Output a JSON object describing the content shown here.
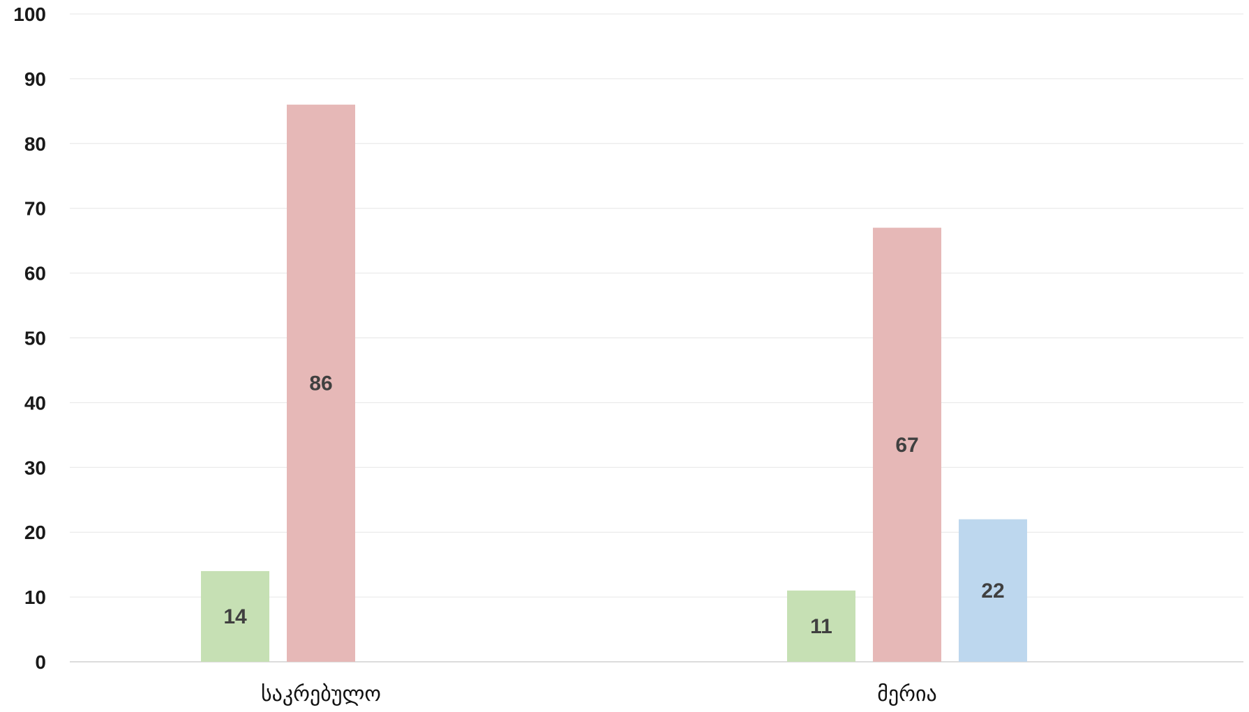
{
  "chart_data": {
    "type": "bar",
    "title": "",
    "xlabel": "",
    "ylabel": "",
    "ylim": [
      0,
      100
    ],
    "yticks": [
      0,
      10,
      20,
      30,
      40,
      50,
      60,
      70,
      80,
      90,
      100
    ],
    "grid": true,
    "legend": "none",
    "categories": [
      "საკრებულო",
      "მერია"
    ],
    "series": [
      {
        "color": "#c6e0b4",
        "values": [
          14,
          11
        ]
      },
      {
        "color": "#e6b8b7",
        "values": [
          86,
          67
        ]
      },
      {
        "color": "#bdd7ee",
        "values": [
          null,
          22
        ]
      }
    ],
    "data_labels": true
  }
}
